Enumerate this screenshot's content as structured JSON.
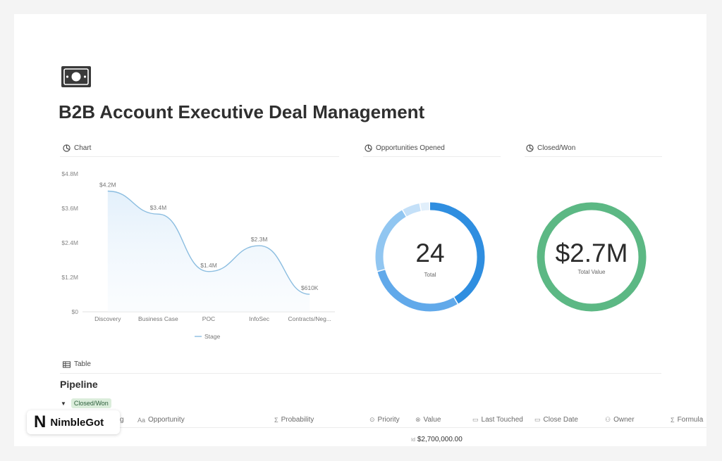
{
  "page": {
    "icon": "banknote-icon",
    "title": "B2B Account Executive Deal Management"
  },
  "blocks": {
    "chart_label": "Chart",
    "opportunities_label": "Opportunities Opened",
    "closed_won_label": "Closed/Won",
    "table_label": "Table"
  },
  "chart_data": [
    {
      "type": "area",
      "categories": [
        "Discovery",
        "Business Case",
        "POC",
        "InfoSec",
        "Contracts/Neg..."
      ],
      "series": [
        {
          "name": "Stage",
          "values": [
            4.2,
            3.4,
            1.4,
            2.3,
            0.61
          ],
          "labels": [
            "$4.2M",
            "$3.4M",
            "$1.4M",
            "$2.3M",
            "$610K"
          ]
        }
      ],
      "y_ticks": [
        "$0",
        "$1.2M",
        "$2.4M",
        "$3.6M",
        "$4.8M"
      ],
      "ylim": [
        0,
        4.8
      ],
      "legend_position": "bottom",
      "color": "#8bbde0"
    },
    {
      "type": "pie",
      "center_value": "24",
      "center_label": "Total",
      "slices": [
        {
          "value": 10,
          "color": "#2f8ee0"
        },
        {
          "value": 7,
          "color": "#61a9ea"
        },
        {
          "value": 5,
          "color": "#91c6f1"
        },
        {
          "value": 1.3,
          "color": "#c4e0f8"
        },
        {
          "value": 0.7,
          "color": "#e1effb"
        }
      ]
    },
    {
      "type": "pie",
      "center_value": "$2.7M",
      "center_label": "Total Value",
      "slices": [
        {
          "value": 1,
          "color": "#5cb884"
        }
      ]
    }
  ],
  "table": {
    "title": "Pipeline",
    "group": {
      "toggle": "▼",
      "badge": "Closed/Won"
    },
    "columns": [
      {
        "icon": "text-icon",
        "glyph": "Aa",
        "label": "Opportunity"
      },
      {
        "icon": "formula-icon",
        "glyph": "Σ",
        "label": "Probability"
      },
      {
        "icon": "select-icon",
        "glyph": "⊙",
        "label": "Priority"
      },
      {
        "icon": "link-icon",
        "glyph": "⊗",
        "label": "Value"
      },
      {
        "icon": "calendar-icon",
        "glyph": "▭",
        "label": "Last Touched"
      },
      {
        "icon": "calendar-icon",
        "glyph": "▭",
        "label": "Close Date"
      },
      {
        "icon": "people-icon",
        "glyph": "⚇",
        "label": "Owner"
      },
      {
        "icon": "formula-icon",
        "glyph": "Σ",
        "label": "Formula"
      }
    ],
    "partial_first_col": "g",
    "sum": {
      "label": "Id",
      "value": "$2,700,000.00"
    }
  },
  "brand": {
    "logo": "N",
    "name": "NimbleGot"
  }
}
